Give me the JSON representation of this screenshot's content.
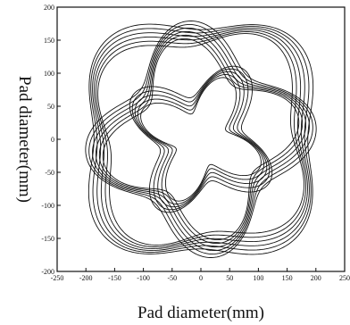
{
  "chart_data": {
    "type": "line",
    "title": "",
    "xlabel": "Pad diameter(mm)",
    "ylabel": "Pad diameter(mm)",
    "xlim": [
      -250,
      250
    ],
    "ylim": [
      -200,
      200
    ],
    "xticks": [
      -250,
      -200,
      -150,
      -100,
      -50,
      0,
      50,
      100,
      150,
      200,
      250
    ],
    "yticks": [
      -200,
      -150,
      -100,
      -50,
      0,
      50,
      100,
      150,
      200
    ],
    "grid": false,
    "legend": "none",
    "line_color": "#111111",
    "series": [
      {
        "description_free": true,
        "loops": [
          {
            "r0": 188,
            "amp": 22,
            "k": 4,
            "phase": 0.79,
            "count": 6,
            "step": 5,
            "rot_step": 0.025
          },
          {
            "r0": 150,
            "amp": 30,
            "k": 4,
            "phase": 0.0,
            "count": 6,
            "step": 5,
            "rot_step": 0.02
          },
          {
            "r0": 95,
            "amp": 30,
            "k": 4,
            "phase": 0.79,
            "count": 5,
            "step": 6,
            "rot_step": 0.03
          }
        ]
      }
    ]
  }
}
